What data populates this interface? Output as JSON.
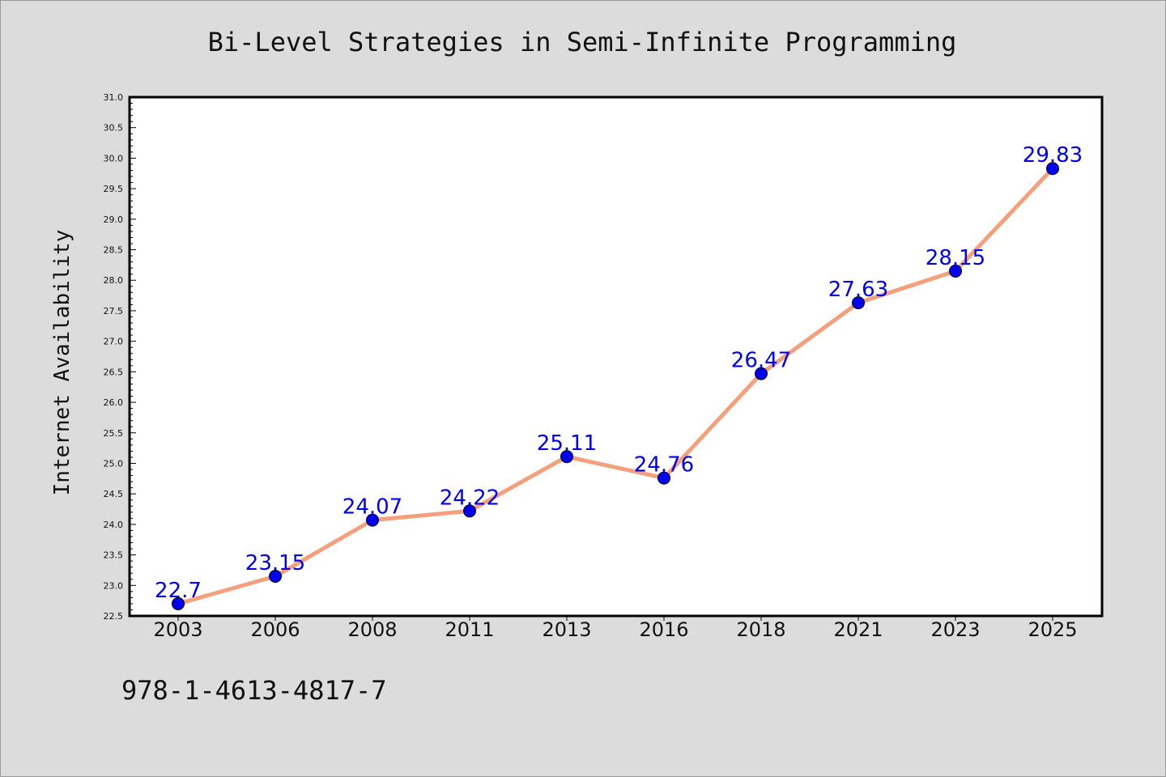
{
  "chart_data": {
    "type": "line",
    "title": "Bi-Level Strategies in Semi-Infinite Programming",
    "xlabel": "",
    "ylabel": "Internet Availability",
    "categories": [
      "2003",
      "2006",
      "2008",
      "2011",
      "2013",
      "2016",
      "2018",
      "2021",
      "2023",
      "2025"
    ],
    "series": [
      {
        "values": [
          22.7,
          23.15,
          24.07,
          24.22,
          25.11,
          24.76,
          26.47,
          27.63,
          28.15,
          29.83
        ],
        "data_labels": [
          "22.7",
          "23.15",
          "24.07",
          "24.22",
          "25.11",
          "24.76",
          "26.47",
          "27.63",
          "28.15",
          "29.83"
        ],
        "line_color": "#f4a07c",
        "marker_color": "#0000ee"
      }
    ],
    "ylim": [
      22.5,
      31.0
    ],
    "yticks": [
      "22.5",
      "23.0",
      "23.5",
      "24.0",
      "24.5",
      "25.0",
      "25.5",
      "26.0",
      "26.5",
      "27.0",
      "27.5",
      "28.0",
      "28.5",
      "29.0",
      "29.5",
      "30.0",
      "30.5",
      "31.0"
    ],
    "grid": false,
    "label_color": "#0000ee"
  },
  "footnote": "978-1-4613-4817-7",
  "colors": {
    "background": "#dcdcdc",
    "plot_background": "#ffffff",
    "axis": "#000000"
  }
}
